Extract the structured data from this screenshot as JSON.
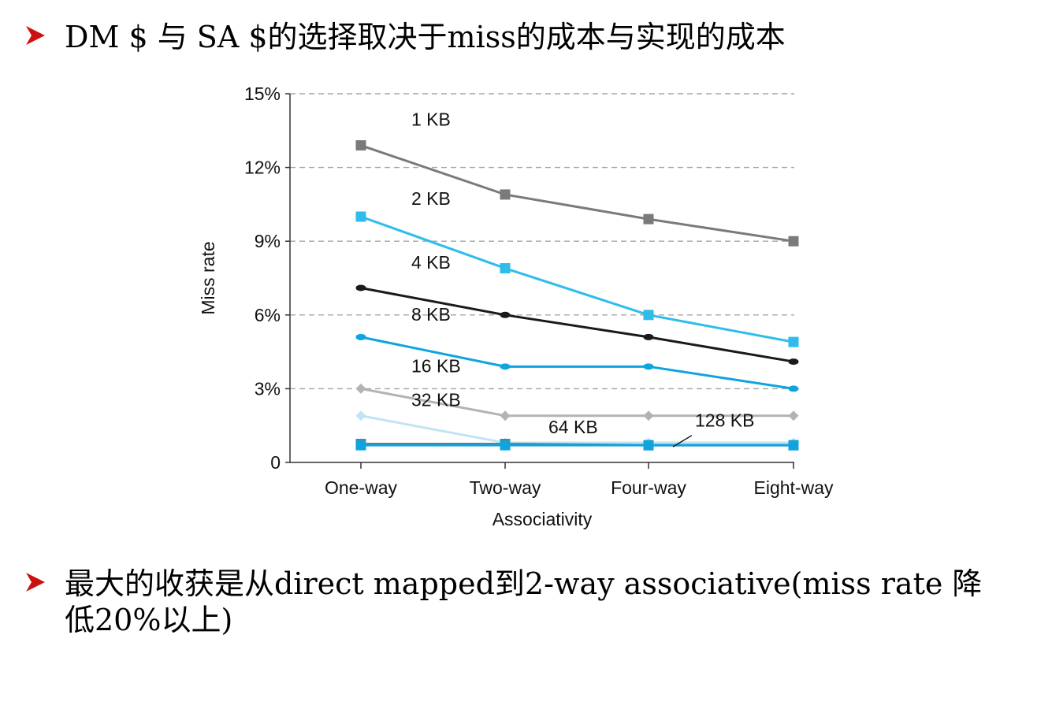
{
  "bullets": [
    {
      "text": "DM $ 与 SA $的选择取决于miss的成本与实现的成本"
    },
    {
      "text": "最大的收获是从direct mapped到2-way associative(miss rate 降低20%以上)"
    }
  ],
  "colors": {
    "bullet": "#cc1111",
    "gray": "#7a7a7a",
    "cyan": "#2ebdea",
    "black": "#1a1a1a",
    "blue": "#10a4de",
    "lightgray": "#b3b3b3",
    "palecyan": "#bfe4f4",
    "grid": "#a6a6a6"
  },
  "chart_data": {
    "type": "line",
    "xlabel": "Associativity",
    "ylabel": "Miss rate",
    "categories": [
      "One-way",
      "Two-way",
      "Four-way",
      "Eight-way"
    ],
    "ylim": [
      0,
      15
    ],
    "yticks": [
      0,
      3,
      6,
      9,
      12,
      15
    ],
    "ytick_labels": [
      "0",
      "3%",
      "6%",
      "9%",
      "12%",
      "15%"
    ],
    "grid": true,
    "series": [
      {
        "name": "1 KB",
        "values": [
          12.9,
          10.9,
          9.9,
          9.0
        ],
        "color": "#7a7a7a",
        "marker": "square"
      },
      {
        "name": "2 KB",
        "values": [
          10.0,
          7.9,
          6.0,
          4.9
        ],
        "color": "#2ebdea",
        "marker": "square"
      },
      {
        "name": "4 KB",
        "values": [
          7.1,
          6.0,
          5.1,
          4.1
        ],
        "color": "#1a1a1a",
        "marker": "circle"
      },
      {
        "name": "8 KB",
        "values": [
          5.1,
          3.9,
          3.9,
          3.0
        ],
        "color": "#10a4de",
        "marker": "circle"
      },
      {
        "name": "16 KB",
        "values": [
          3.0,
          1.9,
          1.9,
          1.9
        ],
        "color": "#b3b3b3",
        "marker": "diamond"
      },
      {
        "name": "32 KB",
        "values": [
          1.9,
          0.8,
          0.8,
          0.8
        ],
        "color": "#bfe4f4",
        "marker": "diamond"
      },
      {
        "name": "64 KB",
        "values": [
          0.75,
          0.75,
          0.7,
          0.7
        ],
        "color": "#6e6e6e",
        "marker": "square"
      },
      {
        "name": "128 KB",
        "values": [
          0.7,
          0.7,
          0.7,
          0.7
        ],
        "color": "#10a4de",
        "marker": "square"
      }
    ]
  }
}
